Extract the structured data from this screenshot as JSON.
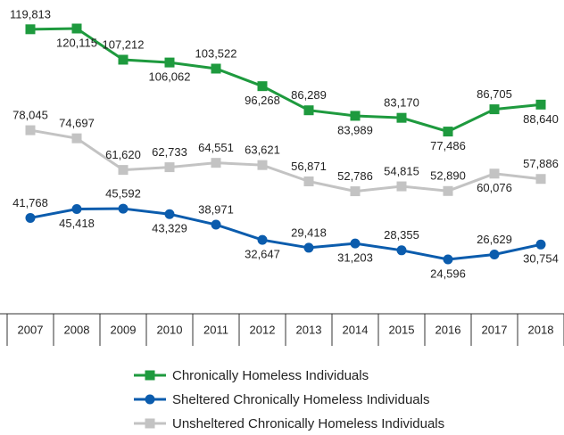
{
  "chart_data": {
    "type": "line",
    "categories": [
      "2007",
      "2008",
      "2009",
      "2010",
      "2011",
      "2012",
      "2013",
      "2014",
      "2015",
      "2016",
      "2017",
      "2018"
    ],
    "series": [
      {
        "name": "Chronically Homeless Individuals",
        "color": "#1e9a3e",
        "marker": "square",
        "values": [
          119813,
          120115,
          107212,
          106062,
          103522,
          96268,
          86289,
          83989,
          83170,
          77486,
          86705,
          88640
        ],
        "value_labels": [
          "119,813",
          "120,115",
          "107,212",
          "106,062",
          "103,522",
          "96,268",
          "86,289",
          "83,989",
          "83,170",
          "77,486",
          "86,705",
          "88,640"
        ]
      },
      {
        "name": "Sheltered Chronically Homeless Individuals",
        "color": "#0b5cad",
        "marker": "circle",
        "values": [
          41768,
          45418,
          45592,
          43329,
          38971,
          32647,
          29418,
          31203,
          28355,
          24596,
          26629,
          30754
        ],
        "value_labels": [
          "41,768",
          "45,418",
          "45,592",
          "43,329",
          "38,971",
          "32,647",
          "29,418",
          "31,203",
          "28,355",
          "24,596",
          "26,629",
          "30,754"
        ]
      },
      {
        "name": "Unsheltered Chronically Homeless Individuals",
        "color": "#c3c3c3",
        "marker": "square",
        "values": [
          78045,
          74697,
          61620,
          62733,
          64551,
          63621,
          56871,
          52786,
          54815,
          52890,
          60076,
          57886
        ],
        "value_labels": [
          "78,045",
          "74,697",
          "61,620",
          "62,733",
          "64,551",
          "63,621",
          "56,871",
          "52,786",
          "54,815",
          "52,890",
          "60,076",
          "57,886"
        ]
      }
    ]
  }
}
